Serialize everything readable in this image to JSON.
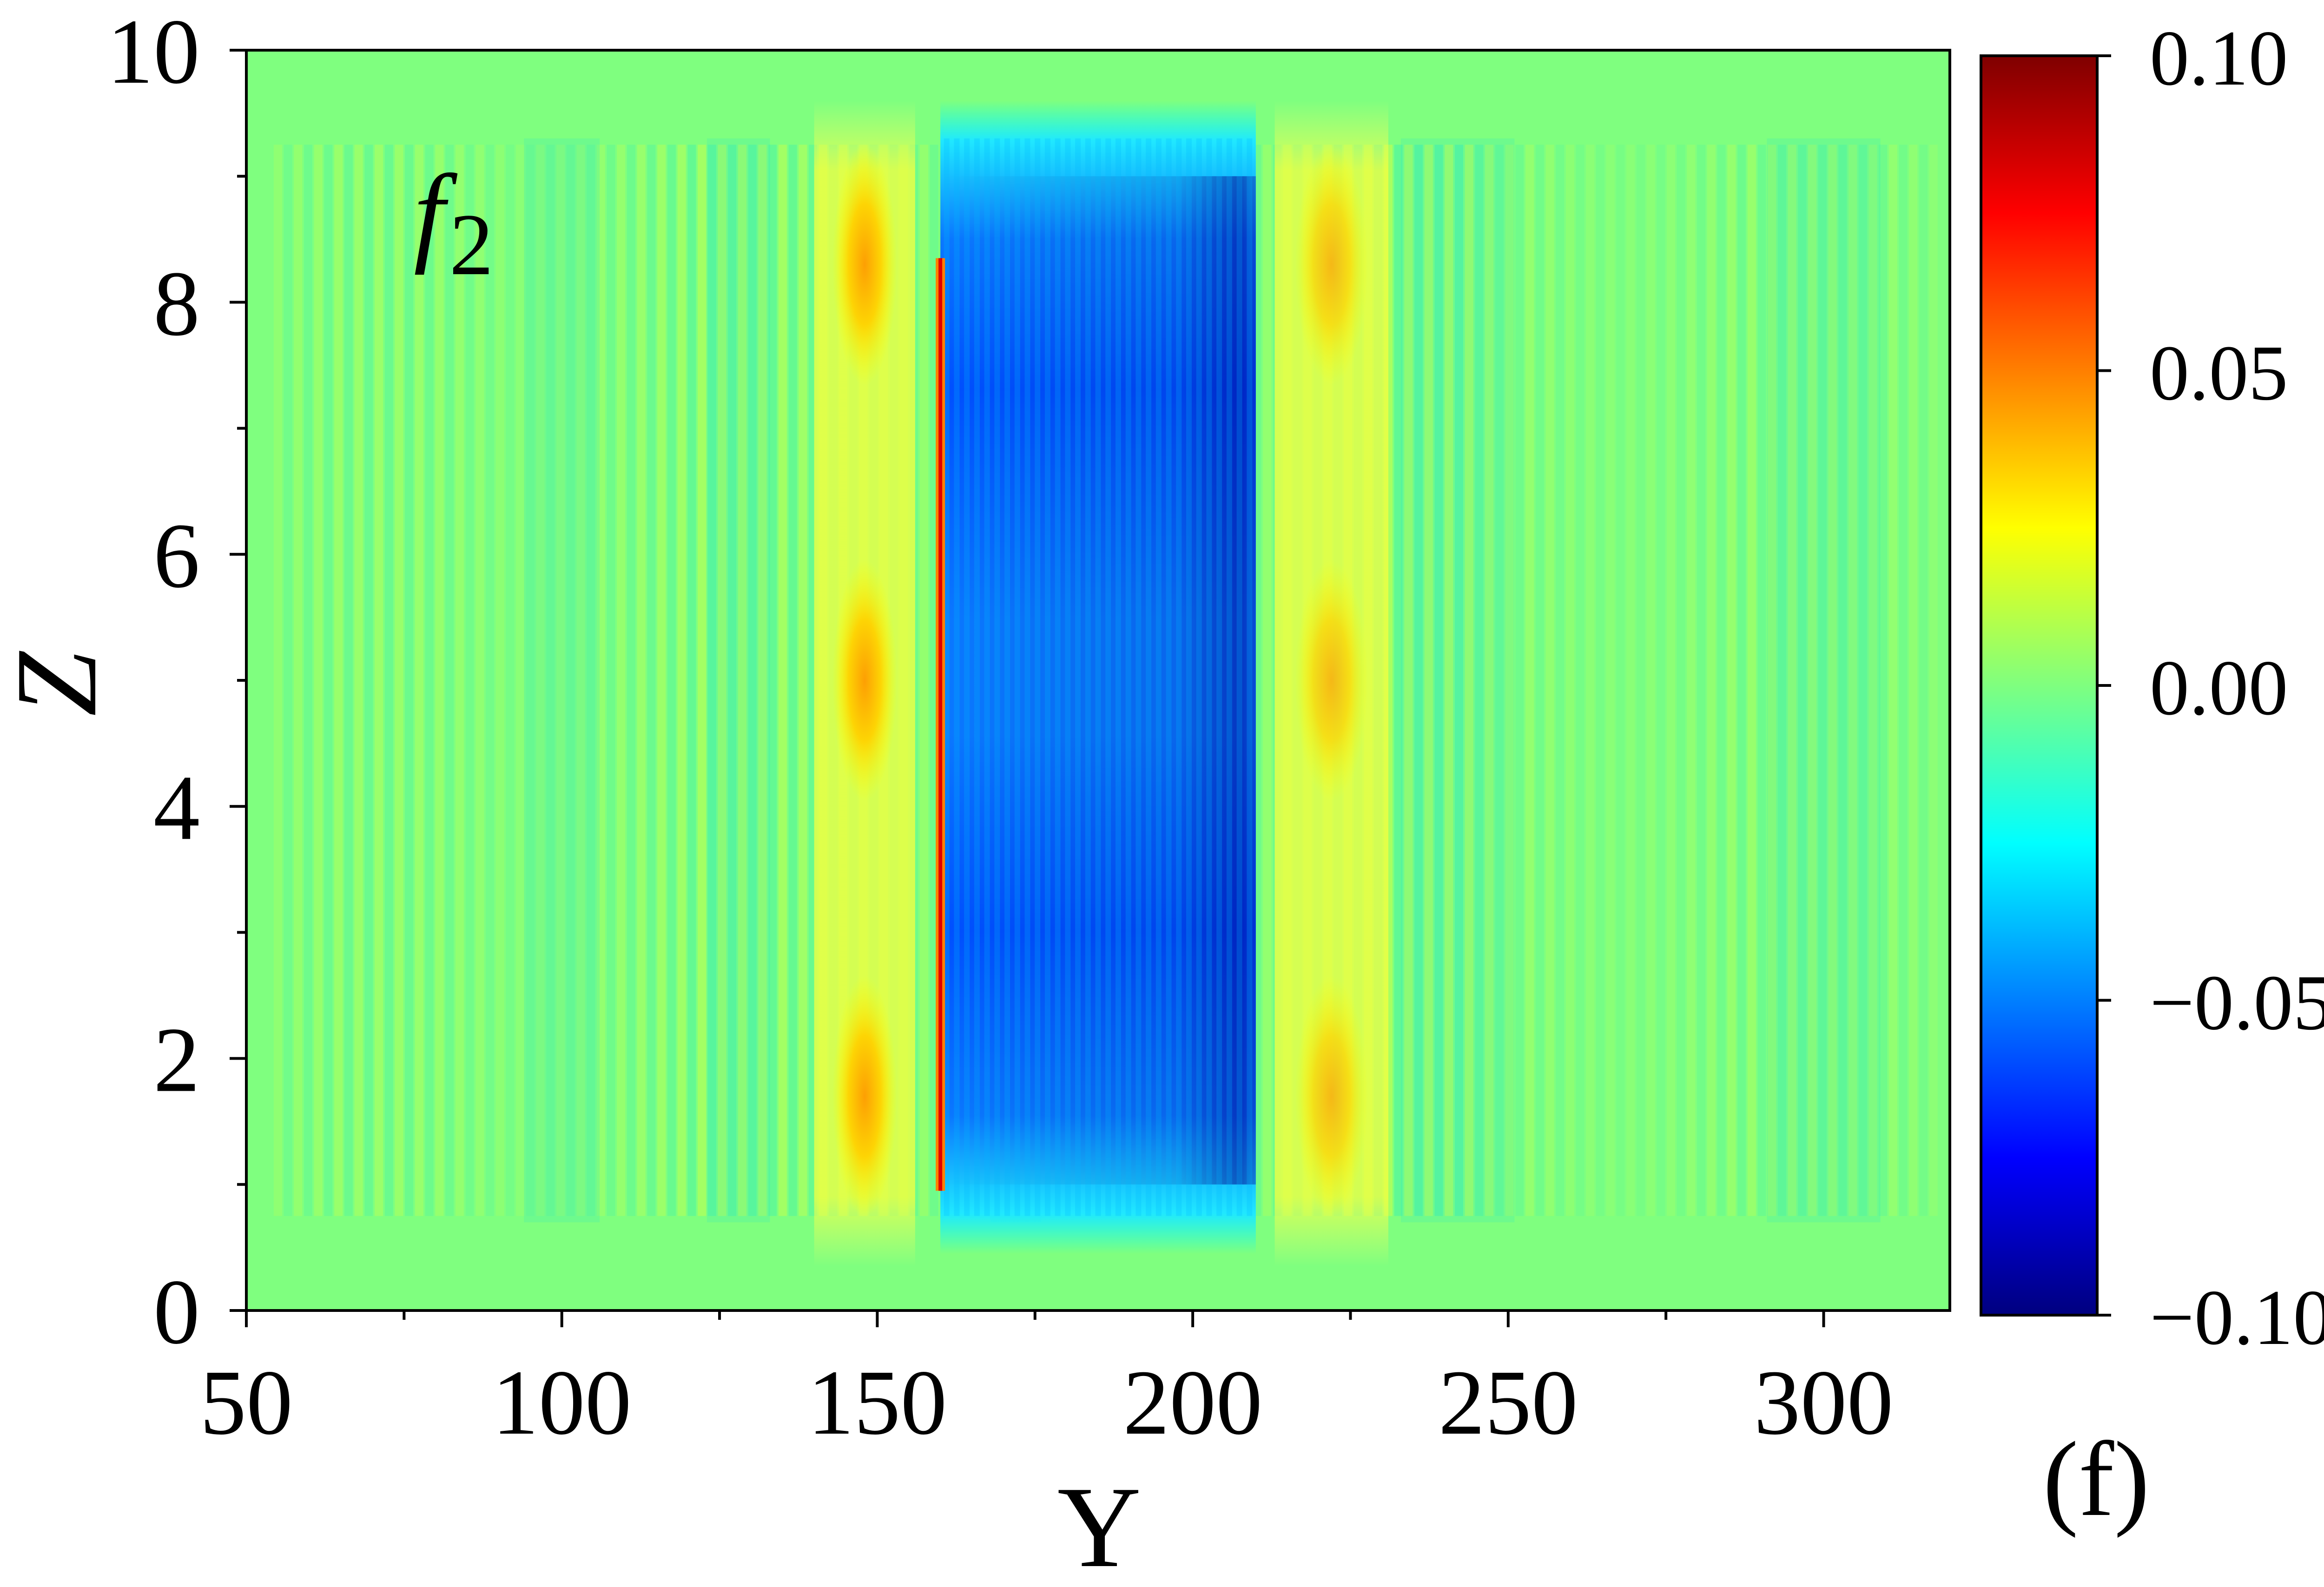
{
  "chart_data": {
    "type": "heatmap",
    "panel_label": "(f)",
    "annotation": {
      "base": "f",
      "subscript": "2"
    },
    "xlabel": "Y",
    "ylabel": "Z",
    "xlim": [
      50,
      320
    ],
    "ylim": [
      0,
      10
    ],
    "x_ticks": [
      50,
      100,
      150,
      200,
      250,
      300
    ],
    "x_tick_labels": [
      "50",
      "100",
      "150",
      "200",
      "250",
      "300"
    ],
    "y_ticks": [
      0,
      2,
      4,
      6,
      8,
      10
    ],
    "y_tick_labels": [
      "0",
      "2",
      "4",
      "6",
      "8",
      "10"
    ],
    "colorbar": {
      "range": [
        -0.1,
        0.1
      ],
      "ticks": [
        0.1,
        0.05,
        0.0,
        -0.05,
        -0.1
      ],
      "tick_labels": [
        "0.10",
        "0.05",
        "0.00",
        "−0.05",
        "−0.10"
      ],
      "colormap": "jet",
      "colors": [
        "#00007f",
        "#0000ff",
        "#007fff",
        "#00ffff",
        "#7fff7f",
        "#ffff00",
        "#ff7f00",
        "#ff0000",
        "#7f0000"
      ]
    },
    "features": [
      {
        "region": "Y 160-210, Z 0.5-9.5",
        "value_range": [
          -0.09,
          -0.03
        ],
        "description": "blue rectangular band with vertical striations"
      },
      {
        "region": "Y 148, Z 0.5-9.5",
        "value_range": [
          0.0,
          0.04
        ],
        "description": "yellow column with peaks near Z=1.7, 5, 8.3"
      },
      {
        "region": "Y 222, Z 0.5-9.5",
        "value_range": [
          0.0,
          0.035
        ],
        "description": "yellow column with peaks near Z=1.7, 5, 8.3"
      },
      {
        "region": "Y 160",
        "value_range": [
          0.08,
          0.09
        ],
        "description": "thin red line"
      },
      {
        "region": "Y 55-320, Z 0.8-9.2",
        "value_range": [
          -0.015,
          0.015
        ],
        "description": "weak alternating vertical fringes"
      }
    ],
    "background_value": 0.0
  }
}
